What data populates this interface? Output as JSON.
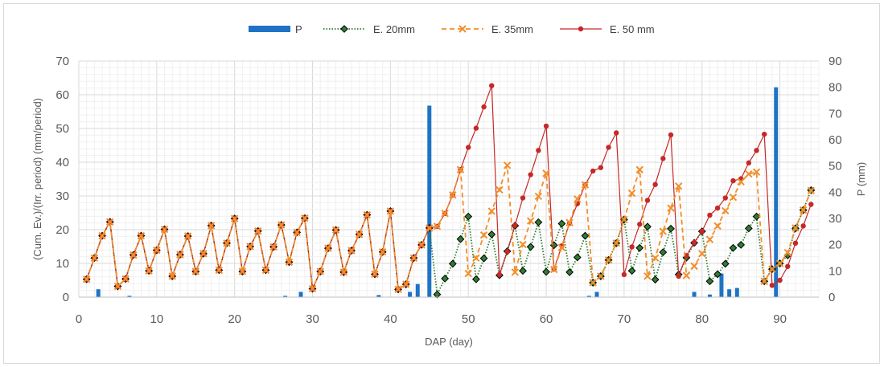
{
  "chart_data": {
    "type": "line",
    "xlabel": "DAP (day)",
    "ylabel_left": "(Cum. Ev.)/(Irr. period) (mm/period)",
    "ylabel_right": "P (mm)",
    "xlim": [
      0,
      95
    ],
    "ylim_left": [
      0,
      70
    ],
    "ylim_right": [
      0,
      90
    ],
    "x_ticks": [
      0,
      10,
      20,
      30,
      40,
      50,
      60,
      70,
      80,
      90
    ],
    "y_ticks_left": [
      0,
      10,
      20,
      30,
      40,
      50,
      60,
      70
    ],
    "y_ticks_right": [
      0,
      10,
      20,
      30,
      40,
      50,
      60,
      70,
      80,
      90
    ],
    "grid": true,
    "legend_position": "top",
    "legend": [
      "P",
      "E. 20mm",
      "E. 35mm",
      "E. 50 mm"
    ],
    "precipitation": {
      "name": "P",
      "color": "#1F73C4",
      "axis": "right",
      "x": [
        2.5,
        6.5,
        26.5,
        28.5,
        38.5,
        42.5,
        43.5,
        45,
        65.5,
        66.5,
        79,
        81,
        82.5,
        83.5,
        84.5,
        89.5
      ],
      "values": [
        3,
        0.5,
        0.5,
        2,
        0.8,
        2,
        5,
        73,
        0.5,
        2,
        2,
        1,
        9,
        3,
        3.5,
        80
      ]
    },
    "series": [
      {
        "name": "E. 20mm",
        "color": "#2E7D32",
        "style": "dotted-diamond",
        "x": [
          1,
          2,
          3,
          4,
          5,
          6,
          7,
          8,
          9,
          10,
          11,
          12,
          13,
          14,
          15,
          16,
          17,
          18,
          19,
          20,
          21,
          22,
          23,
          24,
          25,
          26,
          27,
          28,
          29,
          30,
          31,
          32,
          33,
          34,
          35,
          36,
          37,
          38,
          39,
          40,
          41,
          42,
          43,
          44,
          45,
          46,
          47,
          48,
          49,
          50,
          51,
          52,
          53,
          54,
          55,
          56,
          57,
          58,
          59,
          60,
          61,
          62,
          63,
          64,
          65,
          66,
          67,
          68,
          69,
          70,
          71,
          72,
          73,
          74,
          75,
          76,
          77,
          78,
          79,
          80,
          81,
          82,
          83,
          84,
          85,
          86,
          87,
          88,
          89,
          90,
          91,
          92,
          93,
          94
        ],
        "values": [
          5.3,
          11.6,
          18.2,
          22.3,
          3.2,
          5.4,
          12.5,
          18.2,
          7.8,
          13.9,
          20.1,
          6.2,
          12.6,
          18.1,
          7.6,
          12.9,
          21.2,
          8,
          16,
          23.3,
          7.6,
          15,
          19.6,
          8,
          14.9,
          21.4,
          10.4,
          19.2,
          23.4,
          2.5,
          7.6,
          14.5,
          19.9,
          7.4,
          13.8,
          18.6,
          24.4,
          6.8,
          13.4,
          25.5,
          2.3,
          3.8,
          11.6,
          15.5,
          20.5,
          0.8,
          5.5,
          9.9,
          17.2,
          23.9,
          5.3,
          11.5,
          18.6,
          6.5,
          13.6,
          21.2,
          7.8,
          14.9,
          22.2,
          7.5,
          15.4,
          21.8,
          7.4,
          11.8,
          18.2,
          4.3,
          6.2,
          11,
          16,
          23,
          7.8,
          14.6,
          20.9,
          5.2,
          13.3,
          20.3,
          6.7,
          11.7,
          16.1,
          19.5,
          4.7,
          6.8,
          9.9,
          14.6,
          15.5,
          20.4,
          23.9,
          4.7,
          8.3,
          10,
          12.4,
          20.4,
          25.8,
          31.7
        ]
      },
      {
        "name": "E. 35mm",
        "color": "#F28E2B",
        "style": "dashed-x",
        "x": [
          1,
          2,
          3,
          4,
          5,
          6,
          7,
          8,
          9,
          10,
          11,
          12,
          13,
          14,
          15,
          16,
          17,
          18,
          19,
          20,
          21,
          22,
          23,
          24,
          25,
          26,
          27,
          28,
          29,
          30,
          31,
          32,
          33,
          34,
          35,
          36,
          37,
          38,
          39,
          40,
          41,
          42,
          43,
          44,
          45,
          46,
          47,
          48,
          49,
          50,
          51,
          52,
          53,
          54,
          55,
          56,
          57,
          58,
          59,
          60,
          61,
          62,
          63,
          64,
          65,
          66,
          67,
          68,
          69,
          70,
          71,
          72,
          73,
          74,
          75,
          76,
          77,
          78,
          79,
          80,
          81,
          82,
          83,
          84,
          85,
          86,
          87,
          88,
          89,
          90,
          91,
          92,
          93,
          94
        ],
        "values": [
          5.3,
          11.6,
          18.2,
          22.3,
          3.2,
          5.4,
          12.5,
          18.2,
          7.8,
          13.9,
          20.1,
          6.2,
          12.6,
          18.1,
          7.6,
          12.9,
          21.2,
          8,
          16,
          23.3,
          7.6,
          15,
          19.6,
          8,
          14.9,
          21.4,
          10.4,
          19.2,
          23.4,
          2.5,
          7.6,
          14.5,
          19.9,
          7.4,
          13.8,
          18.6,
          24.4,
          6.8,
          13.4,
          25.5,
          2.3,
          3.8,
          11.6,
          15.5,
          20.5,
          21,
          24.8,
          30.3,
          37.8,
          7,
          11.6,
          18.4,
          25.5,
          31.8,
          39.1,
          7.4,
          15.6,
          22.6,
          29.9,
          36.7,
          8.2,
          14.7,
          22.1,
          29.1,
          33.3,
          4.3,
          6.2,
          11,
          16,
          23,
          30.8,
          37.8,
          6.2,
          11.6,
          19.5,
          26.4,
          32.9,
          6.4,
          9.2,
          12.9,
          17.1,
          21.1,
          25.6,
          29.6,
          34.2,
          36.5,
          37.1,
          4.7,
          8.3,
          10,
          13.2,
          20.5,
          25.8,
          31.6
        ]
      },
      {
        "name": "E. 50 mm",
        "color": "#C62828",
        "style": "solid-dot",
        "x": [
          1,
          2,
          3,
          4,
          5,
          6,
          7,
          8,
          9,
          10,
          11,
          12,
          13,
          14,
          15,
          16,
          17,
          18,
          19,
          20,
          21,
          22,
          23,
          24,
          25,
          26,
          27,
          28,
          29,
          30,
          31,
          32,
          33,
          34,
          35,
          36,
          37,
          38,
          39,
          40,
          41,
          42,
          43,
          44,
          45,
          46,
          47,
          48,
          49,
          50,
          51,
          52,
          53,
          54,
          55,
          56,
          57,
          58,
          59,
          60,
          61,
          62,
          63,
          64,
          65,
          66,
          67,
          68,
          69,
          70,
          71,
          72,
          73,
          74,
          75,
          76,
          77,
          78,
          79,
          80,
          81,
          82,
          83,
          84,
          85,
          86,
          87,
          88,
          89,
          90,
          91,
          92,
          93,
          94
        ],
        "values": [
          5.3,
          11.6,
          18.2,
          22.3,
          3.2,
          5.4,
          12.5,
          18.2,
          7.8,
          13.9,
          20.1,
          6.2,
          12.6,
          18.1,
          7.6,
          12.9,
          21.2,
          8,
          16,
          23.3,
          7.6,
          15,
          19.6,
          8,
          14.9,
          21.4,
          10.4,
          19.2,
          23.4,
          2.5,
          7.6,
          14.5,
          19.9,
          7.4,
          13.8,
          18.6,
          24.4,
          6.8,
          13.4,
          25.5,
          2.3,
          3.8,
          11.6,
          15.5,
          20.5,
          21,
          24.8,
          30.3,
          37.8,
          44.4,
          50.1,
          56.4,
          62.7,
          6.7,
          13.5,
          21.3,
          29.4,
          36.3,
          43.5,
          50.7,
          8.3,
          15.2,
          21.9,
          27.7,
          33.3,
          37.4,
          38.4,
          44.4,
          48.7,
          6.7,
          14.9,
          21.6,
          28.7,
          33.4,
          41.1,
          48.1,
          6.2,
          12.3,
          16.2,
          19.5,
          24.3,
          26.4,
          29.4,
          34.5,
          35.1,
          39.8,
          43.5,
          48.3,
          3.5,
          5,
          9.1,
          16,
          21.1,
          27.5
        ]
      }
    ]
  }
}
